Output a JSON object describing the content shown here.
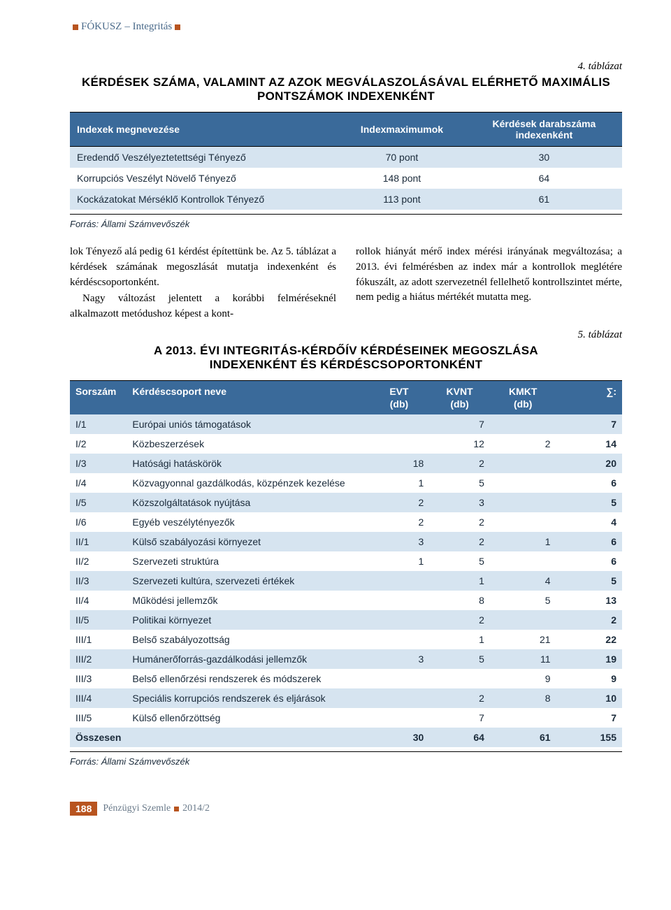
{
  "header": {
    "title": "FÓKUSZ",
    "subtitle": "– Integritás"
  },
  "table4": {
    "label": "4. táblázat",
    "title_line1": "KÉRDÉSEK SZÁMA, VALAMINT AZ AZOK MEGVÁLASZOLÁSÁVAL ELÉRHETŐ MAXIMÁLIS",
    "title_line2": "PONTSZÁMOK INDEXENKÉNT",
    "head_col1": "Indexek megnevezése",
    "head_col2": "Indexmaximumok",
    "head_col3_line1": "Kérdések darabszáma",
    "head_col3_line2": "indexenként",
    "rows": [
      {
        "name": "Eredendő Veszélyeztetettségi Tényező",
        "max": "70 pont",
        "count": "30"
      },
      {
        "name": "Korrupciós Veszélyt Növelő Tényező",
        "max": "148 pont",
        "count": "64"
      },
      {
        "name": "Kockázatokat Mérséklő Kontrollok Tényező",
        "max": "113 pont",
        "count": "61"
      }
    ],
    "source_label": "Forrás:",
    "source_text": "Állami Számvevőszék"
  },
  "body": {
    "left": "lok Tényező alá pedig 61 kérdést építettünk be. Az 5. táblázat a kérdések számának megoszlását mutatja indexenként és kérdéscsoportonként.",
    "left_p2": "Nagy változást jelentett a korábbi felméréseknél alkalmazott metódushoz képest a kont-",
    "right": "rollok hiányát mérő index mérési irányának megváltozása; a 2013. évi felmérésben az index már a kontrollok meglétére fókuszált, az adott szervezetnél fellelhető kontrollszintet mérte, nem pedig a hiátus mértékét mutatta meg."
  },
  "table5": {
    "label": "5. táblázat",
    "title_line1": "A 2013. ÉVI INTEGRITÁS-KÉRDŐÍV KÉRDÉSEINEK MEGOSZLÁSA",
    "title_line2": "INDEXENKÉNT ÉS KÉRDÉSCSOPORTONKÉNT",
    "head": {
      "sorszam": "Sorszám",
      "group": "Kérdéscsoport neve",
      "evt": "EVT",
      "kvnt": "KVNT",
      "kmkt": "KMKT",
      "sum": "∑:",
      "db": "(db)"
    },
    "rows": [
      {
        "id": "I/1",
        "name": "Európai uniós támogatások",
        "evt": "",
        "kvnt": "7",
        "kmkt": "",
        "sum": "7"
      },
      {
        "id": "I/2",
        "name": "Közbeszerzések",
        "evt": "",
        "kvnt": "12",
        "kmkt": "2",
        "sum": "14"
      },
      {
        "id": "I/3",
        "name": "Hatósági hatáskörök",
        "evt": "18",
        "kvnt": "2",
        "kmkt": "",
        "sum": "20"
      },
      {
        "id": "I/4",
        "name": "Közvagyonnal gazdálkodás, közpénzek kezelése",
        "evt": "1",
        "kvnt": "5",
        "kmkt": "",
        "sum": "6"
      },
      {
        "id": "I/5",
        "name": "Közszolgáltatások nyújtása",
        "evt": "2",
        "kvnt": "3",
        "kmkt": "",
        "sum": "5"
      },
      {
        "id": "I/6",
        "name": "Egyéb veszélytényezők",
        "evt": "2",
        "kvnt": "2",
        "kmkt": "",
        "sum": "4"
      },
      {
        "id": "II/1",
        "name": "Külső szabályozási környezet",
        "evt": "3",
        "kvnt": "2",
        "kmkt": "1",
        "sum": "6"
      },
      {
        "id": "II/2",
        "name": "Szervezeti struktúra",
        "evt": "1",
        "kvnt": "5",
        "kmkt": "",
        "sum": "6"
      },
      {
        "id": "II/3",
        "name": "Szervezeti kultúra, szervezeti értékek",
        "evt": "",
        "kvnt": "1",
        "kmkt": "4",
        "sum": "5"
      },
      {
        "id": "II/4",
        "name": "Működési jellemzők",
        "evt": "",
        "kvnt": "8",
        "kmkt": "5",
        "sum": "13"
      },
      {
        "id": "II/5",
        "name": "Politikai környezet",
        "evt": "",
        "kvnt": "2",
        "kmkt": "",
        "sum": "2"
      },
      {
        "id": "III/1",
        "name": "Belső szabályozottság",
        "evt": "",
        "kvnt": "1",
        "kmkt": "21",
        "sum": "22"
      },
      {
        "id": "III/2",
        "name": "Humánerőforrás-gazdálkodási jellemzők",
        "evt": "3",
        "kvnt": "5",
        "kmkt": "11",
        "sum": "19"
      },
      {
        "id": "III/3",
        "name": "Belső ellenőrzési rendszerek és módszerek",
        "evt": "",
        "kvnt": "",
        "kmkt": "9",
        "sum": "9"
      },
      {
        "id": "III/4",
        "name": "Speciális korrupciós rendszerek és eljárások",
        "evt": "",
        "kvnt": "2",
        "kmkt": "8",
        "sum": "10"
      },
      {
        "id": "III/5",
        "name": "Külső ellenőrzöttség",
        "evt": "",
        "kvnt": "7",
        "kmkt": "",
        "sum": "7"
      }
    ],
    "total": {
      "id": "Összesen",
      "name": "",
      "evt": "30",
      "kvnt": "64",
      "kmkt": "61",
      "sum": "155"
    },
    "source_label": "Forrás:",
    "source_text": "Állami Számvevőszék"
  },
  "footer": {
    "page": "188",
    "journal": "Pénzügyi Szemle",
    "issue": "2014/2"
  },
  "colors": {
    "accent": "#b8541f",
    "header_bg": "#3a6a9a",
    "row_even": "#d6e4f0",
    "text_muted": "#4a6a8a"
  }
}
